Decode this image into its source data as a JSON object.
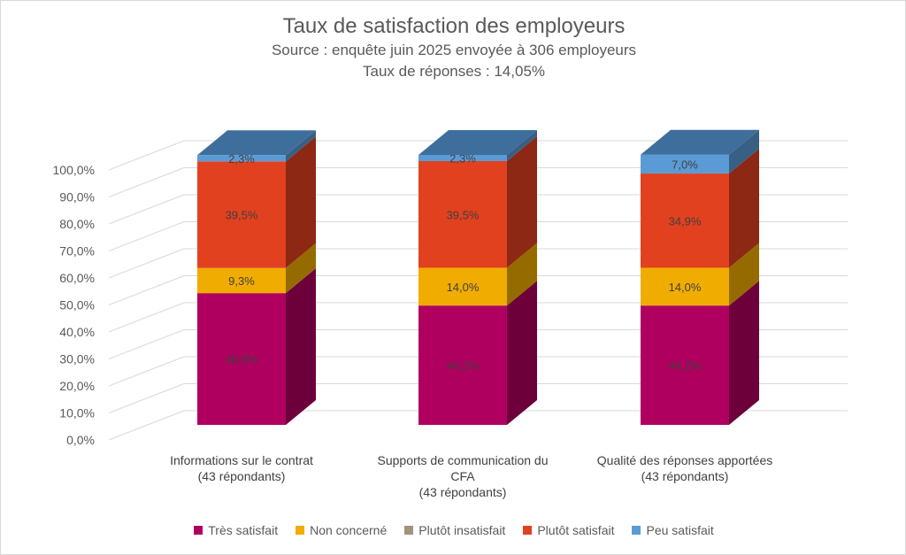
{
  "chart_data": {
    "type": "bar",
    "stacked": true,
    "three_d": true,
    "title": "Taux de satisfaction des employeurs",
    "subtitle_lines": [
      "Source : enquête juin 2025 envoyée à 306 employeurs",
      "Taux de réponses : 14,05%"
    ],
    "categories": [
      [
        "Informations sur le contrat",
        "(43 répondants)"
      ],
      [
        "Supports de communication du",
        "CFA",
        "(43 répondants)"
      ],
      [
        "Qualité des réponses apportées",
        "(43 répondants)"
      ]
    ],
    "ylim": [
      0,
      100
    ],
    "yticks": [
      "0,0%",
      "10,0%",
      "20,0%",
      "30,0%",
      "40,0%",
      "50,0%",
      "60,0%",
      "70,0%",
      "80,0%",
      "90,0%",
      "100,0%"
    ],
    "grid": true,
    "legend_position": "bottom",
    "series": [
      {
        "name": "Très satisfait",
        "color": "#b0005f",
        "values": [
          48.8,
          44.2,
          44.2
        ],
        "labels": [
          "48,8%",
          "44,2%",
          "44,2%"
        ]
      },
      {
        "name": "Non concerné",
        "color": "#f0ac00",
        "values": [
          9.3,
          14.0,
          14.0
        ],
        "labels": [
          "9,3%",
          "14,0%",
          "14,0%"
        ]
      },
      {
        "name": "Plutôt insatisfait",
        "color": "#a5927c",
        "values": [
          0,
          0,
          0
        ],
        "labels": [
          "",
          "",
          ""
        ]
      },
      {
        "name": "Plutôt satisfait",
        "color": "#e1411f",
        "values": [
          39.5,
          39.5,
          34.9
        ],
        "labels": [
          "39,5%",
          "39,5%",
          "34,9%"
        ]
      },
      {
        "name": "Peu satisfait",
        "color": "#5b9bd5",
        "values": [
          2.3,
          2.3,
          7.0
        ],
        "labels": [
          "2,3%",
          "2,3%",
          "7,0%"
        ]
      }
    ],
    "top_face_color": "#3e6e9c"
  }
}
